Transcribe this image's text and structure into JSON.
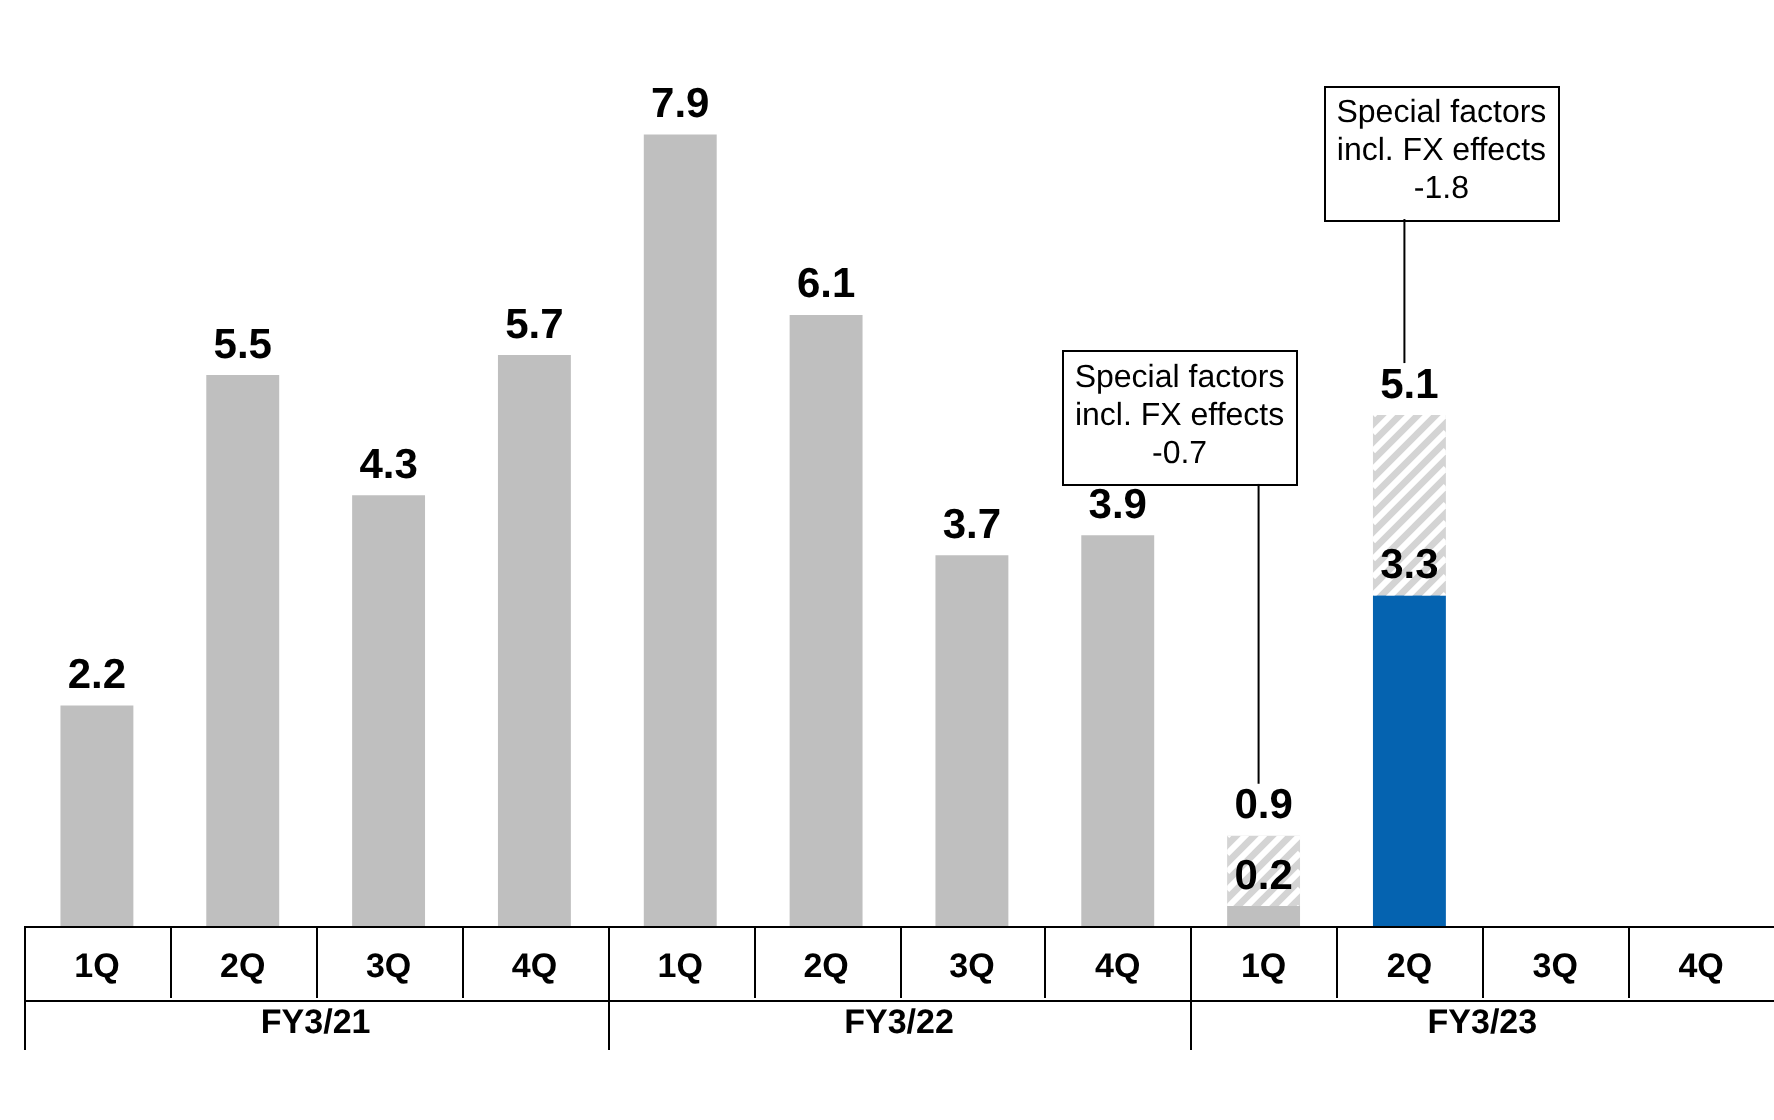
{
  "chart_data": {
    "type": "bar",
    "stacked": true,
    "categories": [
      "1Q",
      "2Q",
      "3Q",
      "4Q",
      "1Q",
      "2Q",
      "3Q",
      "4Q",
      "1Q",
      "2Q",
      "3Q",
      "4Q"
    ],
    "series": [
      {
        "colors": [
          "#bfbfbf",
          "#bfbfbf",
          "#bfbfbf",
          "#bfbfbf",
          "#bfbfbf",
          "#bfbfbf",
          "#bfbfbf",
          "#bfbfbf",
          "#bfbfbf",
          "#0563b0",
          "#bfbfbf",
          "#bfbfbf"
        ],
        "values": [
          2.2,
          5.5,
          4.3,
          5.7,
          7.9,
          6.1,
          3.7,
          3.9,
          0.2,
          3.3,
          null,
          null
        ],
        "value_labels": [
          "2.2",
          "5.5",
          "4.3",
          "5.7",
          "7.9",
          "6.1",
          "3.7",
          "3.9",
          "0.2",
          "3.3",
          null,
          null
        ]
      },
      {
        "color": "#d4d4d4",
        "values": [
          null,
          null,
          null,
          null,
          null,
          null,
          null,
          null,
          0.7,
          1.8,
          null,
          null
        ]
      }
    ],
    "totals": [
      null,
      null,
      null,
      null,
      null,
      null,
      null,
      null,
      "0.9",
      "5.1",
      null,
      null
    ],
    "annotations": [
      "FY3/21",
      "FY3/22",
      "FY3/23",
      "Special factors\nincl. FX effects\n-0.7",
      "Special factors\nincl. FX effects\n-1.8"
    ],
    "legend": false
  }
}
